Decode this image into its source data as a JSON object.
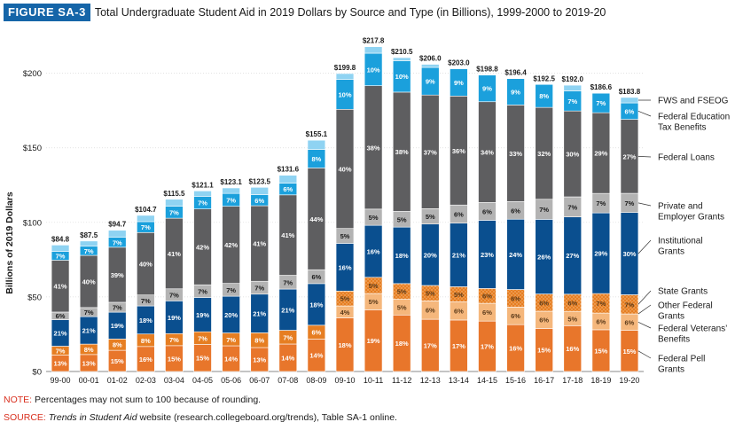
{
  "figure": {
    "label": "FIGURE SA-3",
    "title": "Total Undergraduate Student Aid in 2019 Dollars by Source and Type (in Billions), 1999-2000 to 2019-20"
  },
  "notes": {
    "note_label": "NOTE:",
    "note_text": " Percentages may not sum to 100 because of rounding.",
    "source_label": "SOURCE:",
    "source_title": "Trends in Student Aid",
    "source_text": " website (research.collegeboard.org/trends), Table SA-1 online."
  },
  "colors": {
    "federal_pell": "#e8762b",
    "veterans": "#f5b77c",
    "other_federal": "#e67e22",
    "state": "#f7c98f",
    "institutional": "#0a4f8f",
    "private": "#b3b3b3",
    "federal_loans": "#5e5e60",
    "tax_benefits": "#1ba0dc",
    "fws_fseog": "#8fd3f2"
  },
  "chart_data": {
    "type": "bar",
    "stacked": true,
    "ylabel": "Billions of 2019 Dollars",
    "ylim": [
      0,
      220
    ],
    "yticks": [
      0,
      50,
      100,
      150,
      200
    ],
    "ytick_labels": [
      "$0",
      "$50",
      "$100",
      "$150",
      "$200"
    ],
    "categories": [
      "99-00",
      "00-01",
      "01-02",
      "02-03",
      "03-04",
      "04-05",
      "05-06",
      "06-07",
      "07-08",
      "08-09",
      "09-10",
      "10-11",
      "11-12",
      "12-13",
      "13-14",
      "14-15",
      "15-16",
      "16-17",
      "17-18",
      "18-19",
      "19-20"
    ],
    "totals": [
      84.8,
      87.5,
      94.7,
      104.7,
      115.5,
      121.1,
      123.1,
      123.5,
      131.6,
      155.1,
      199.8,
      217.8,
      210.5,
      206.0,
      203.0,
      198.8,
      196.4,
      192.5,
      192.0,
      186.6,
      183.8
    ],
    "total_labels": [
      "$84.8",
      "$87.5",
      "$94.7",
      "$104.7",
      "$115.5",
      "$121.1",
      "$123.1",
      "$123.5",
      "$131.6",
      "$155.1",
      "$199.8",
      "$217.8",
      "$210.5",
      "$206.0",
      "$203.0",
      "$198.8",
      "$196.4",
      "$192.5",
      "$192.0",
      "$186.6",
      "$183.8"
    ],
    "series": [
      {
        "name": "Federal Pell Grants",
        "key": "federal_pell",
        "values": [
          13,
          13,
          15,
          16,
          15,
          15,
          14,
          13,
          14,
          14,
          18,
          19,
          18,
          17,
          17,
          17,
          16,
          15,
          16,
          15,
          15
        ]
      },
      {
        "name": "Federal Veterans' Benefits",
        "key": "veterans",
        "values": [
          null,
          null,
          null,
          null,
          null,
          null,
          null,
          null,
          null,
          null,
          4,
          5,
          5,
          6,
          6,
          6,
          6,
          6,
          5,
          6,
          6
        ]
      },
      {
        "name": "Other Federal Grants",
        "key": "other_federal",
        "values": [
          7,
          8,
          8,
          8,
          7,
          7,
          7,
          8,
          7,
          6,
          null,
          null,
          null,
          null,
          null,
          null,
          null,
          null,
          null,
          null,
          null
        ]
      },
      {
        "name": "State Grants",
        "key": "state",
        "values": [
          null,
          null,
          null,
          null,
          null,
          null,
          null,
          null,
          null,
          null,
          5,
          5,
          5,
          5,
          5,
          5,
          6,
          6,
          6,
          7,
          7
        ]
      },
      {
        "name": "Institutional Grants",
        "key": "institutional",
        "values": [
          21,
          21,
          19,
          18,
          19,
          19,
          20,
          21,
          21,
          18,
          16,
          16,
          18,
          20,
          21,
          23,
          24,
          26,
          27,
          29,
          30
        ]
      },
      {
        "name": "Private and Employer Grants",
        "key": "private",
        "values": [
          6,
          7,
          7,
          7,
          7,
          7,
          7,
          7,
          7,
          6,
          5,
          5,
          5,
          5,
          6,
          6,
          6,
          7,
          7,
          7,
          7
        ]
      },
      {
        "name": "Federal Loans",
        "key": "federal_loans",
        "values": [
          41,
          40,
          39,
          40,
          41,
          42,
          42,
          41,
          41,
          44,
          40,
          38,
          38,
          37,
          36,
          34,
          33,
          32,
          30,
          29,
          27
        ]
      },
      {
        "name": "Federal Education Tax Benefits",
        "key": "tax_benefits",
        "values": [
          7,
          7,
          7,
          7,
          7,
          7,
          7,
          6,
          6,
          8,
          10,
          10,
          10,
          9,
          9,
          9,
          9,
          8,
          7,
          7,
          6
        ]
      },
      {
        "name": "FWS and FSEOG",
        "key": "fws_fseog",
        "values": [
          null,
          null,
          null,
          null,
          null,
          null,
          null,
          null,
          null,
          null,
          null,
          null,
          null,
          null,
          null,
          null,
          null,
          null,
          null,
          null,
          null
        ]
      }
    ],
    "percent_labels": [
      [
        "13%",
        null,
        "7%",
        null,
        "21%",
        "6%",
        "41%",
        "7%",
        null
      ],
      [
        "13%",
        null,
        "8%",
        null,
        "21%",
        "7%",
        "40%",
        "7%",
        null
      ],
      [
        "15%",
        null,
        "8%",
        null,
        "19%",
        "7%",
        "39%",
        "7%",
        null
      ],
      [
        "16%",
        null,
        "8%",
        null,
        "18%",
        "7%",
        "40%",
        "7%",
        null
      ],
      [
        "15%",
        null,
        "7%",
        null,
        "19%",
        "7%",
        "41%",
        "7%",
        null
      ],
      [
        "15%",
        null,
        "7%",
        null,
        "19%",
        "7%",
        "42%",
        "7%",
        null
      ],
      [
        "14%",
        null,
        "7%",
        null,
        "20%",
        "7%",
        "42%",
        "7%",
        null
      ],
      [
        "13%",
        null,
        "8%",
        null,
        "21%",
        "7%",
        "41%",
        "6%",
        null
      ],
      [
        "14%",
        null,
        "7%",
        null,
        "21%",
        "7%",
        "41%",
        "6%",
        null
      ],
      [
        "14%",
        null,
        "6%",
        null,
        "18%",
        "6%",
        "44%",
        "8%",
        null
      ],
      [
        "18%",
        "4%",
        null,
        "5%",
        "16%",
        "5%",
        "40%",
        "10%",
        null
      ],
      [
        "19%",
        "5%",
        null,
        "5%",
        "16%",
        "5%",
        "38%",
        "10%",
        null
      ],
      [
        "18%",
        "5%",
        null,
        "5%",
        "18%",
        "5%",
        "38%",
        "10%",
        null
      ],
      [
        "17%",
        "6%",
        null,
        "5%",
        "20%",
        "5%",
        "37%",
        "9%",
        null
      ],
      [
        "17%",
        "6%",
        null,
        "5%",
        "21%",
        "6%",
        "36%",
        "9%",
        null
      ],
      [
        "17%",
        "6%",
        null,
        "6%",
        "23%",
        "6%",
        "34%",
        "9%",
        null
      ],
      [
        "16%",
        "6%",
        null,
        "6%",
        "24%",
        "6%",
        "33%",
        "9%",
        null
      ],
      [
        "15%",
        "6%",
        null,
        "6%",
        "26%",
        "7%",
        "32%",
        "8%",
        null
      ],
      [
        "16%",
        "5%",
        null,
        "6%",
        "27%",
        "7%",
        "30%",
        "7%",
        null
      ],
      [
        "15%",
        "6%",
        null,
        "7%",
        "29%",
        "7%",
        "29%",
        "7%",
        null
      ],
      [
        "15%",
        "6%",
        null,
        "7%",
        "30%",
        "7%",
        "27%",
        "6%",
        null
      ]
    ],
    "legend": [
      {
        "label": "FWS and FSEOG"
      },
      {
        "label": "Federal Education Tax Benefits"
      },
      {
        "label": "Federal Loans"
      },
      {
        "label": "Private and Employer Grants"
      },
      {
        "label": "Institutional Grants"
      },
      {
        "label": "State Grants"
      },
      {
        "label": "Other Federal Grants"
      },
      {
        "label": "Federal Veterans' Benefits"
      },
      {
        "label": "Federal Pell Grants"
      }
    ],
    "legend_position": "right",
    "grid": true
  }
}
